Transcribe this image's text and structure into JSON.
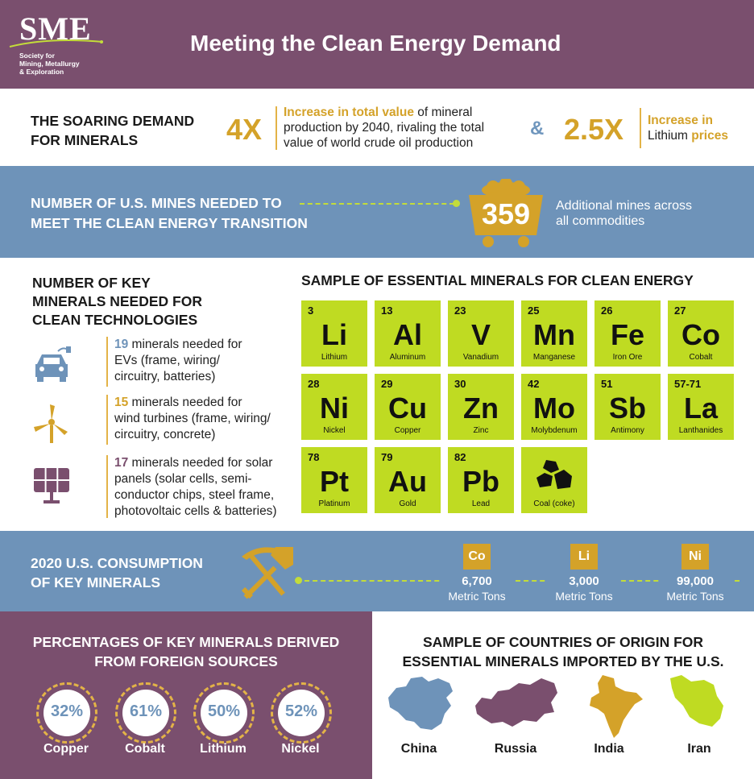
{
  "header": {
    "logo_text": "SME",
    "logo_sub_line1": "Society for",
    "logo_sub_line2": "Mining, Metallurgy",
    "logo_sub_line3": "& Exploration",
    "title": "Meeting the Clean Energy Demand"
  },
  "demand": {
    "label_line1": "THE SOARING DEMAND",
    "label_line2": "FOR MINERALS",
    "stat1_value": "4X",
    "stat1_highlight": "Increase in total value",
    "stat1_rest_a": " of mineral",
    "stat1_line2": "production by 2040, rivaling the total",
    "stat1_line3": "value of world crude oil production",
    "amp": "&",
    "stat2_value": "2.5X",
    "stat2_highlight": "Increase in",
    "stat2_line2_plain": "Lithium ",
    "stat2_line2_highlight": "prices"
  },
  "mines": {
    "label_line1": "NUMBER OF U.S. MINES NEEDED TO",
    "label_line2": "MEET THE CLEAN ENERGY TRANSITION",
    "value": "359",
    "text_line1": "Additional mines across",
    "text_line2": "all commodities"
  },
  "key_minerals": {
    "title_line1": "NUMBER OF KEY",
    "title_line2": "MINERALS NEEDED FOR",
    "title_line3": "CLEAN TECHNOLOGIES",
    "items": [
      {
        "count": "19",
        "line1": " minerals needed for",
        "line2": "EVs (frame, wiring/",
        "line3": "circuitry, batteries)",
        "line4": "",
        "icon": "ev-car-icon",
        "color": "#6e93b9"
      },
      {
        "count": "15",
        "line1": " minerals needed for",
        "line2": "wind turbines (frame, wiring/",
        "line3": "circuitry, concrete)",
        "line4": "",
        "icon": "wind-turbine-icon",
        "color": "#d4a229"
      },
      {
        "count": "17",
        "line1": " minerals needed for solar",
        "line2": "panels (solar cells, semi-",
        "line3": "conductor chips, steel frame,",
        "line4": "photovoltaic cells & batteries)",
        "icon": "solar-panel-icon",
        "color": "#7a4f6e"
      }
    ]
  },
  "periodic": {
    "title": "SAMPLE OF ESSENTIAL MINERALS FOR CLEAN ENERGY",
    "tiles": [
      {
        "num": "3",
        "sym": "Li",
        "name": "Lithium"
      },
      {
        "num": "13",
        "sym": "Al",
        "name": "Aluminum"
      },
      {
        "num": "23",
        "sym": "V",
        "name": "Vanadium"
      },
      {
        "num": "25",
        "sym": "Mn",
        "name": "Manganese"
      },
      {
        "num": "26",
        "sym": "Fe",
        "name": "Iron Ore"
      },
      {
        "num": "27",
        "sym": "Co",
        "name": "Cobalt"
      },
      {
        "num": "28",
        "sym": "Ni",
        "name": "Nickel"
      },
      {
        "num": "29",
        "sym": "Cu",
        "name": "Copper"
      },
      {
        "num": "30",
        "sym": "Zn",
        "name": "Zinc"
      },
      {
        "num": "42",
        "sym": "Mo",
        "name": "Molybdenum"
      },
      {
        "num": "51",
        "sym": "Sb",
        "name": "Antimony"
      },
      {
        "num": "57-71",
        "sym": "La",
        "name": "Lanthanides"
      },
      {
        "num": "78",
        "sym": "Pt",
        "name": "Platinum"
      },
      {
        "num": "79",
        "sym": "Au",
        "name": "Gold"
      },
      {
        "num": "82",
        "sym": "Pb",
        "name": "Lead"
      },
      {
        "num": "",
        "sym": "",
        "name": "Coal (coke)"
      }
    ]
  },
  "consumption": {
    "label_line1": "2020 U.S. CONSUMPTION",
    "label_line2": "OF KEY MINERALS",
    "items": [
      {
        "symbol": "Co",
        "value": "6,700",
        "unit": "Metric Tons"
      },
      {
        "symbol": "Li",
        "value": "3,000",
        "unit": "Metric Tons"
      },
      {
        "symbol": "Ni",
        "value": "99,000",
        "unit": "Metric Tons"
      }
    ]
  },
  "foreign": {
    "title_line1": "PERCENTAGES OF KEY MINERALS DERIVED",
    "title_line2": "FROM FOREIGN SOURCES",
    "items": [
      {
        "value": "32%",
        "label": "Copper"
      },
      {
        "value": "61%",
        "label": "Cobalt"
      },
      {
        "value": "50%",
        "label": "Lithium"
      },
      {
        "value": "52%",
        "label": "Nickel"
      }
    ]
  },
  "countries": {
    "title_line1": "SAMPLE OF COUNTRIES OF ORIGIN FOR",
    "title_line2": "ESSENTIAL MINERALS IMPORTED BY THE U.S.",
    "items": [
      {
        "label": "China",
        "color": "#6e93b9"
      },
      {
        "label": "Russia",
        "color": "#7a4f6e"
      },
      {
        "label": "India",
        "color": "#d4a229"
      },
      {
        "label": "Iran",
        "color": "#bfdb22"
      }
    ]
  },
  "colors": {
    "purple": "#7a4f6e",
    "blue": "#6e93b9",
    "gold": "#d4a229",
    "lime": "#bfdb22"
  }
}
